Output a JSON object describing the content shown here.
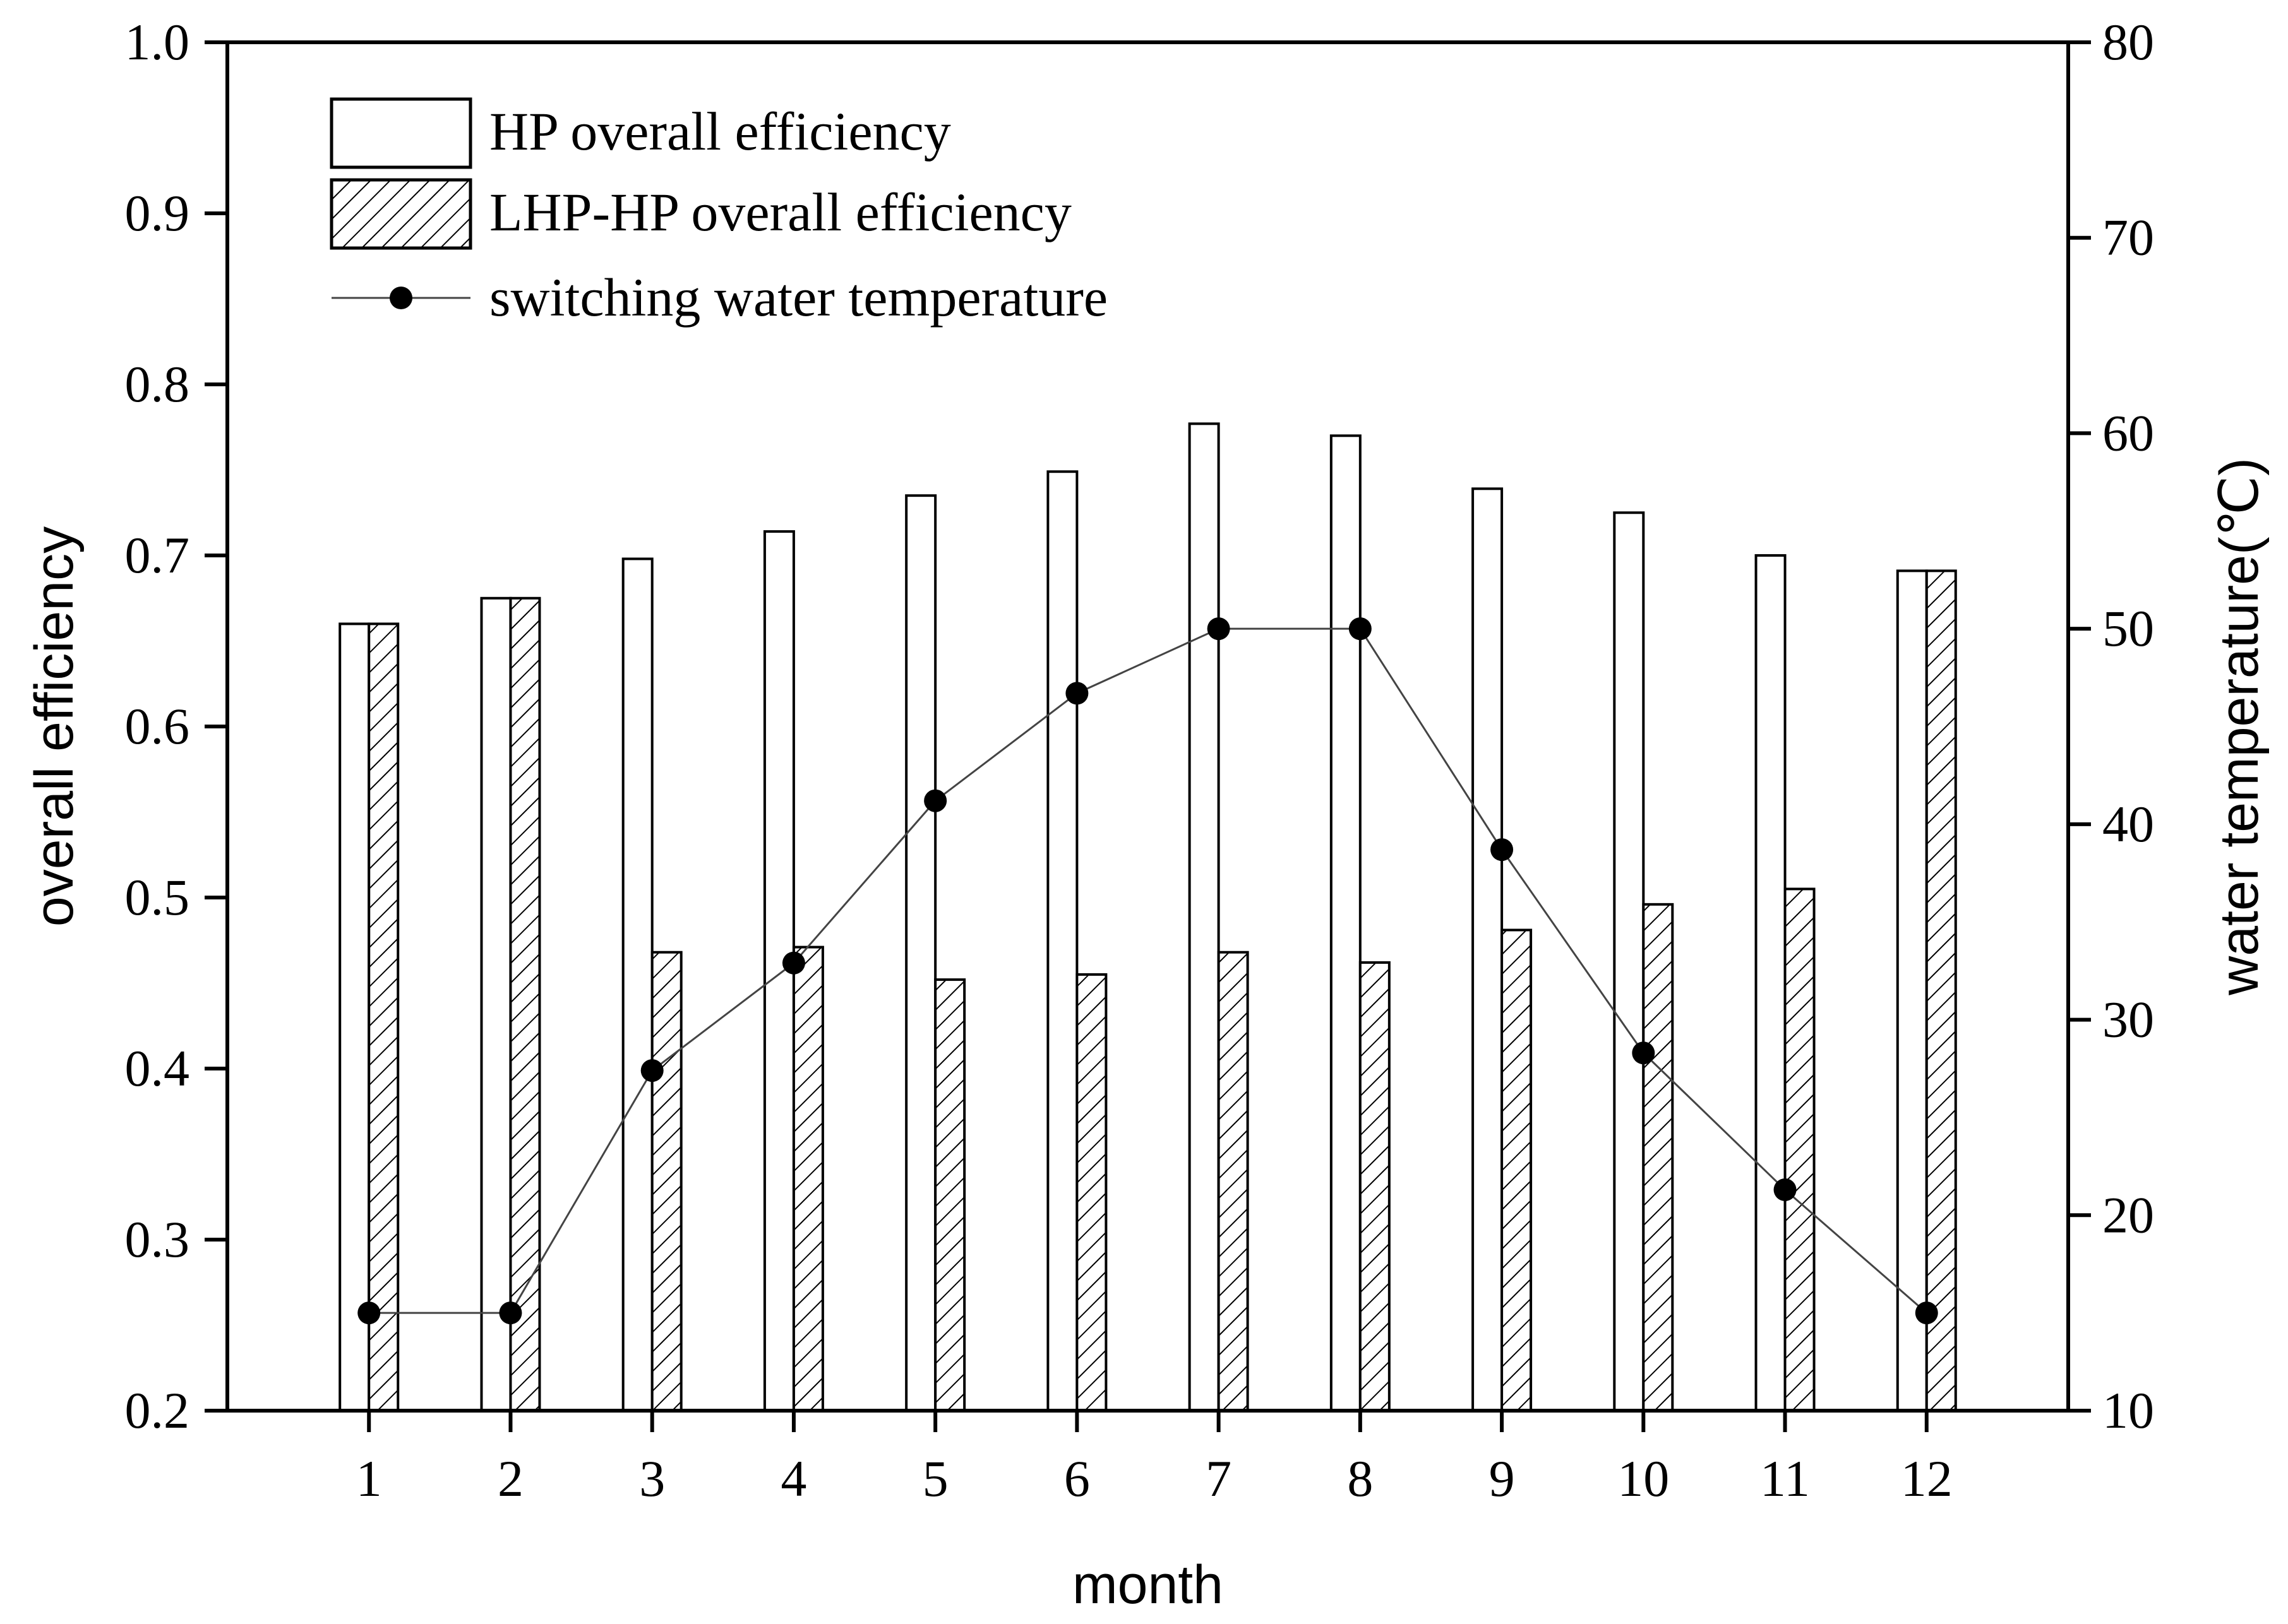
{
  "chart_data": {
    "type": "bar",
    "categories": [
      "1",
      "2",
      "3",
      "4",
      "5",
      "6",
      "7",
      "8",
      "9",
      "10",
      "11",
      "12"
    ],
    "series": [
      {
        "name": "HP overall efficiency",
        "kind": "bar",
        "pattern": "none",
        "axis": "left",
        "values": [
          0.66,
          0.675,
          0.698,
          0.714,
          0.735,
          0.749,
          0.777,
          0.77,
          0.739,
          0.725,
          0.7,
          0.691
        ]
      },
      {
        "name": "LHP-HP overall efficiency",
        "kind": "bar",
        "pattern": "diagonal-hatch",
        "axis": "left",
        "values": [
          0.66,
          0.675,
          0.468,
          0.471,
          0.452,
          0.455,
          0.468,
          0.462,
          0.481,
          0.496,
          0.505,
          0.691
        ]
      },
      {
        "name": "switching water temperature",
        "kind": "line-marker",
        "axis": "right",
        "values": [
          15,
          15,
          27.4,
          32.9,
          41.2,
          46.7,
          50,
          50,
          38.7,
          28.3,
          21.3,
          15
        ]
      }
    ],
    "xlabel": "month",
    "ylabel": "overall efficiency",
    "y2label": "water temperature(℃)",
    "ylim": [
      0.2,
      1.0
    ],
    "y2lim": [
      10,
      80
    ],
    "yticks": [
      "0.2",
      "0.3",
      "0.4",
      "0.5",
      "0.6",
      "0.7",
      "0.8",
      "0.9",
      "1.0"
    ],
    "y2ticks": [
      "10",
      "20",
      "30",
      "40",
      "50",
      "60",
      "70",
      "80"
    ],
    "legend_position": "top-left",
    "grid": false,
    "colors": {
      "axes": "#000000",
      "bar_fill": "#ffffff",
      "marker": "#000000",
      "line": "#444444"
    }
  }
}
